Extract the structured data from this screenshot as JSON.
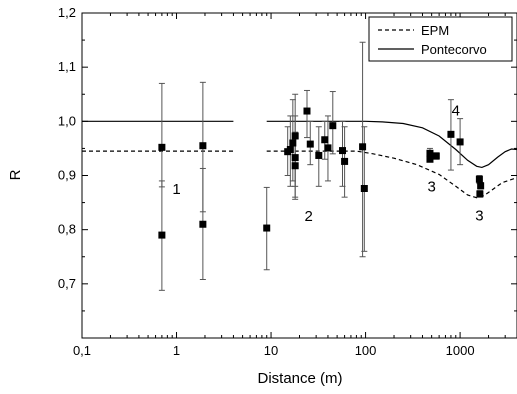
{
  "chart_data": {
    "type": "scatter",
    "xlabel": "Distance (m)",
    "ylabel": "R",
    "xscale": "log",
    "xlim": [
      0.1,
      4000
    ],
    "ylim": [
      0.6,
      1.2
    ],
    "x_ticks": [
      {
        "value": 0.1,
        "label": "0,1"
      },
      {
        "value": 1,
        "label": "1"
      },
      {
        "value": 10,
        "label": "10"
      },
      {
        "value": 100,
        "label": "100"
      },
      {
        "value": 1000,
        "label": "1000"
      }
    ],
    "y_ticks": [
      {
        "value": 0.7,
        "label": "0,7"
      },
      {
        "value": 0.8,
        "label": "0,8"
      },
      {
        "value": 0.9,
        "label": "0,9"
      },
      {
        "value": 1.0,
        "label": "1,0"
      },
      {
        "value": 1.1,
        "label": "1,1"
      },
      {
        "value": 1.2,
        "label": "1,2"
      }
    ],
    "legend": {
      "position": "top-right",
      "entries": [
        {
          "label": "EPM",
          "style": "dashed"
        },
        {
          "label": "Pontecorvo",
          "style": "solid"
        }
      ]
    },
    "annotations": [
      {
        "text": "1",
        "x": 1.0,
        "y": 0.875
      },
      {
        "text": "2",
        "x": 25,
        "y": 0.825
      },
      {
        "text": "3",
        "x": 500,
        "y": 0.88
      },
      {
        "text": "4",
        "x": 900,
        "y": 1.02
      },
      {
        "text": "3",
        "x": 1600,
        "y": 0.826
      }
    ],
    "series": [
      {
        "style": "dashed",
        "points": [
          [
            0.1,
            0.945
          ],
          [
            1,
            0.945
          ],
          [
            4,
            0.945
          ],
          [
            9,
            0.945
          ],
          [
            20,
            0.945
          ],
          [
            50,
            0.945
          ],
          [
            80,
            0.945
          ],
          [
            120,
            0.94
          ],
          [
            200,
            0.932
          ],
          [
            350,
            0.92
          ],
          [
            600,
            0.902
          ],
          [
            900,
            0.88
          ],
          [
            1200,
            0.864
          ],
          [
            1500,
            0.859
          ],
          [
            1800,
            0.863
          ],
          [
            2200,
            0.874
          ],
          [
            2800,
            0.887
          ],
          [
            4000,
            0.896
          ]
        ],
        "gap_x": [
          4,
          9
        ]
      },
      {
        "style": "solid",
        "points": [
          [
            0.1,
            1.0
          ],
          [
            1,
            1.0
          ],
          [
            4,
            1.0
          ],
          [
            9,
            1.0
          ],
          [
            20,
            1.0
          ],
          [
            50,
            1.0
          ],
          [
            100,
            1.0
          ],
          [
            150,
            0.999
          ],
          [
            250,
            0.996
          ],
          [
            400,
            0.988
          ],
          [
            600,
            0.973
          ],
          [
            900,
            0.948
          ],
          [
            1200,
            0.928
          ],
          [
            1500,
            0.917
          ],
          [
            1700,
            0.915
          ],
          [
            2000,
            0.92
          ],
          [
            2500,
            0.934
          ],
          [
            3000,
            0.944
          ],
          [
            3500,
            0.949
          ],
          [
            4000,
            0.948
          ]
        ],
        "gap_x": [
          4,
          9
        ]
      }
    ],
    "measurements": [
      {
        "x": 0.7,
        "y": 0.952,
        "err_low": 0.879,
        "err_high": 1.07
      },
      {
        "x": 0.7,
        "y": 0.79,
        "err_low": 0.688,
        "err_high": 0.89
      },
      {
        "x": 1.9,
        "y": 0.955,
        "err_low": 0.833,
        "err_high": 1.072
      },
      {
        "x": 1.9,
        "y": 0.81,
        "err_low": 0.708,
        "err_high": 0.913
      },
      {
        "x": 9.0,
        "y": 0.803,
        "err_low": 0.726,
        "err_high": 0.878
      },
      {
        "x": 15,
        "y": 0.944,
        "err_low": 0.9,
        "err_high": 0.99
      },
      {
        "x": 16,
        "y": 0.948,
        "err_low": 0.88,
        "err_high": 1.01
      },
      {
        "x": 17,
        "y": 0.96,
        "err_low": 0.89,
        "err_high": 1.04
      },
      {
        "x": 18,
        "y": 0.973,
        "err_low": 0.88,
        "err_high": 1.05
      },
      {
        "x": 18,
        "y": 0.933,
        "err_low": 0.856,
        "err_high": 1.01
      },
      {
        "x": 18,
        "y": 0.918,
        "err_low": 0.86,
        "err_high": 0.98
      },
      {
        "x": 24,
        "y": 1.019,
        "err_low": 0.97,
        "err_high": 1.057
      },
      {
        "x": 26,
        "y": 0.958,
        "err_low": 0.92,
        "err_high": 1.0
      },
      {
        "x": 32,
        "y": 0.937,
        "err_low": 0.88,
        "err_high": 0.99
      },
      {
        "x": 37,
        "y": 0.966,
        "err_low": 0.93,
        "err_high": 1.0
      },
      {
        "x": 40,
        "y": 0.951,
        "err_low": 0.89,
        "err_high": 1.01
      },
      {
        "x": 45,
        "y": 0.992,
        "err_low": 0.94,
        "err_high": 1.055
      },
      {
        "x": 57,
        "y": 0.946,
        "err_low": 0.88,
        "err_high": 1.0
      },
      {
        "x": 60,
        "y": 0.926,
        "err_low": 0.86,
        "err_high": 0.99
      },
      {
        "x": 93,
        "y": 0.953,
        "err_low": 0.75,
        "err_high": 1.146
      },
      {
        "x": 97,
        "y": 0.876,
        "err_low": 0.76,
        "err_high": 0.99
      },
      {
        "x": 480,
        "y": 0.941,
        "err_low": 0.93,
        "err_high": 0.95
      },
      {
        "x": 480,
        "y": 0.93,
        "err_low": 0.925,
        "err_high": 0.935
      },
      {
        "x": 560,
        "y": 0.936,
        "err_low": 0.93,
        "err_high": 0.942
      },
      {
        "x": 800,
        "y": 0.976,
        "err_low": 0.91,
        "err_high": 1.04
      },
      {
        "x": 1000,
        "y": 0.962,
        "err_low": 0.92,
        "err_high": 1.005
      },
      {
        "x": 1600,
        "y": 0.893,
        "err_low": 0.885,
        "err_high": 0.9
      },
      {
        "x": 1650,
        "y": 0.881,
        "err_low": 0.875,
        "err_high": 0.887
      },
      {
        "x": 1620,
        "y": 0.866,
        "err_low": 0.86,
        "err_high": 0.872
      }
    ]
  }
}
